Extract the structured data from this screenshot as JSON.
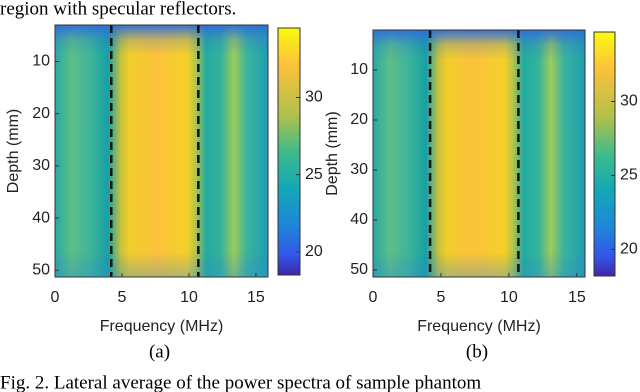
{
  "header": {
    "text": "region with specular reflectors."
  },
  "chart_data": [
    {
      "type": "heatmap",
      "xlabel": "Frequency (MHz)",
      "ylabel": "Depth (mm)",
      "xlim": [
        0,
        15.9
      ],
      "ylim": [
        3,
        51.3
      ],
      "xticks": [
        0,
        5,
        10,
        15
      ],
      "yticks": [
        10,
        20,
        30,
        40,
        50
      ],
      "clim": [
        18.5,
        34.5
      ],
      "cticks": [
        20,
        25,
        30
      ],
      "dashed_lines": [
        4.2,
        10.7
      ],
      "label": "(a)"
    },
    {
      "type": "heatmap",
      "xlabel": "Frequency (MHz)",
      "ylabel": "Depth (mm)",
      "xlim": [
        0,
        15.6
      ],
      "ylim": [
        2,
        51.4
      ],
      "xticks": [
        0,
        5,
        10,
        15
      ],
      "yticks": [
        10,
        20,
        30,
        40,
        50
      ],
      "clim": [
        18.2,
        34.7
      ],
      "cticks": [
        20,
        25,
        30
      ],
      "dashed_lines": [
        4.2,
        10.7
      ],
      "label": "(b)"
    }
  ],
  "caption": "Fig. 2. Lateral average of the power spectra of sample phantom"
}
